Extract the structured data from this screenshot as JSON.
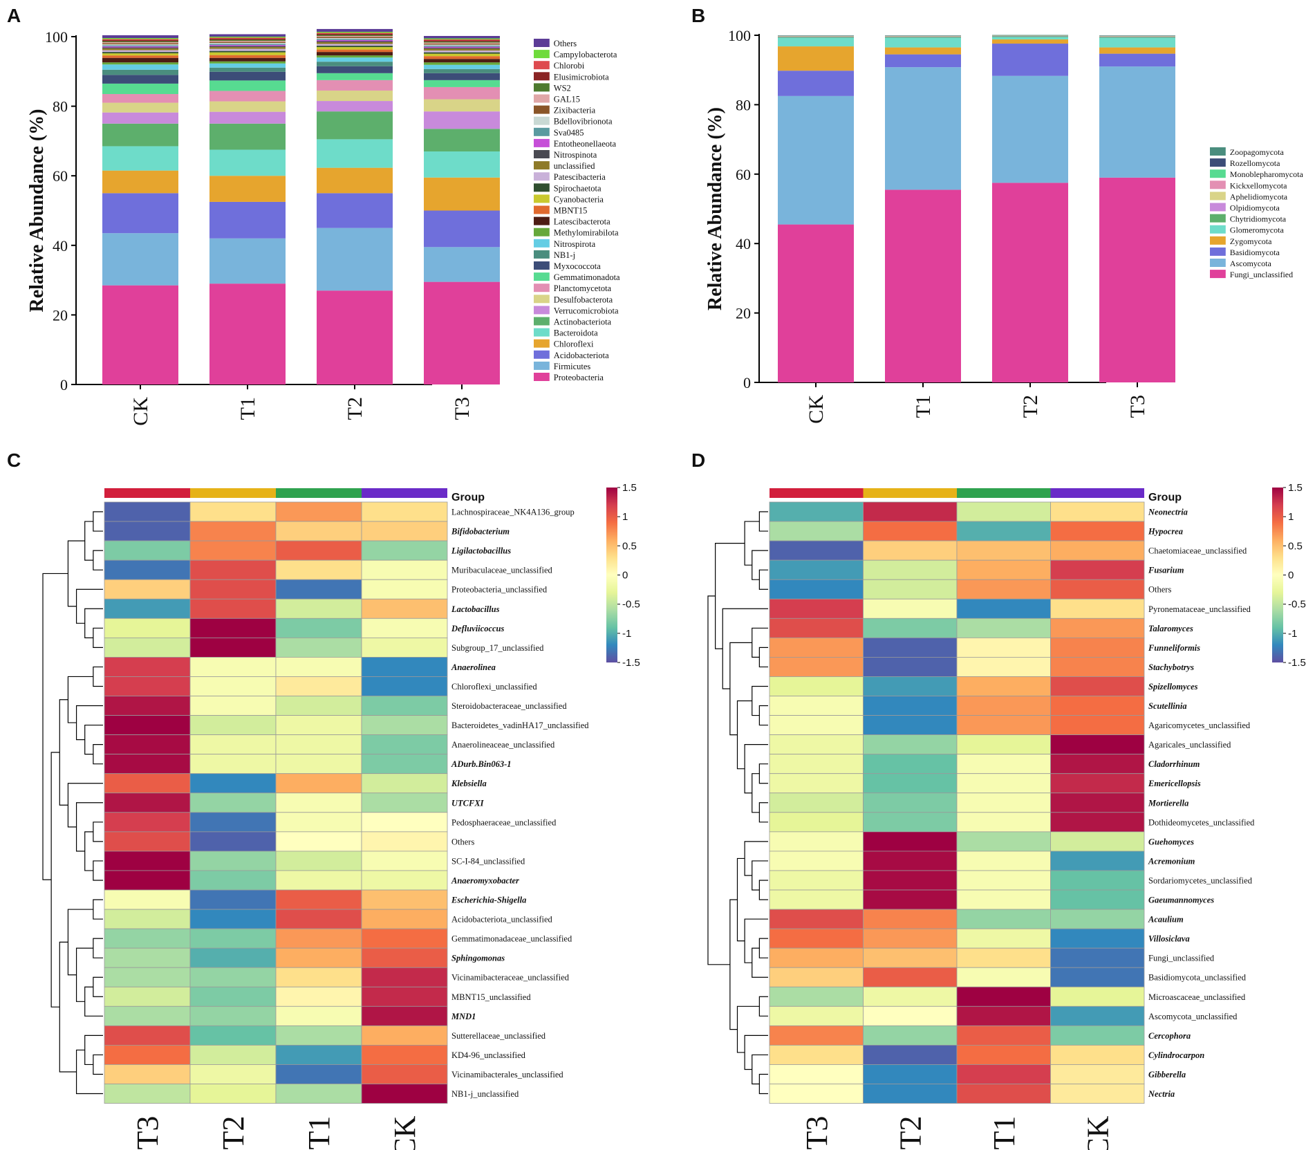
{
  "panels": {
    "A": "A",
    "B": "B",
    "C": "C",
    "D": "D"
  },
  "chart_data": [
    {
      "panel": "A",
      "type": "bar",
      "stacked": true,
      "ylabel": "Relative Abundance (%)",
      "ylim": [
        0,
        100
      ],
      "yticks": [
        0,
        20,
        40,
        60,
        80,
        100
      ],
      "categories": [
        "CK",
        "T1",
        "T2",
        "T3"
      ],
      "legend_order": [
        "Others",
        "Campylobacterota",
        "Chlorobi",
        "Elusimicrobiota",
        "WS2",
        "GAL15",
        "Zixibacteria",
        "Bdellovibrionota",
        "Sva0485",
        "Entotheonellaeota",
        "Nitrospinota",
        "unclassified",
        "Patescibacteria",
        "Spirochaetota",
        "Cyanobacteria",
        "MBNT15",
        "Latescibacterota",
        "Methylomirabilota",
        "Nitrospirota",
        "NB1-j",
        "Myxococcota",
        "Gemmatimonadota",
        "Planctomycetota",
        "Desulfobacterota",
        "Verrucomicrobiota",
        "Actinobacteriota",
        "Bacteroidota",
        "Chloroflexi",
        "Acidobacteriota",
        "Firmicutes",
        "Proteobacteria"
      ],
      "series": [
        {
          "name": "Proteobacteria",
          "color": "#e0409a",
          "values": [
            28.5,
            29,
            27,
            29.5
          ]
        },
        {
          "name": "Firmicutes",
          "color": "#79b4db",
          "values": [
            15,
            13,
            18,
            10
          ]
        },
        {
          "name": "Acidobacteriota",
          "color": "#6f6fdb",
          "values": [
            11.5,
            10.5,
            10,
            10.5
          ]
        },
        {
          "name": "Chloroflexi",
          "color": "#e6a52e",
          "values": [
            6.5,
            7.5,
            7.3,
            9.5
          ]
        },
        {
          "name": "Bacteroidota",
          "color": "#6edcc9",
          "values": [
            7,
            7.5,
            8.2,
            7.5
          ]
        },
        {
          "name": "Actinobacteriota",
          "color": "#5daf6c",
          "values": [
            6.5,
            7.5,
            8,
            6.5
          ]
        },
        {
          "name": "Verrucomicrobiota",
          "color": "#c88adb",
          "values": [
            3.2,
            3.4,
            3,
            5
          ]
        },
        {
          "name": "Desulfobacterota",
          "color": "#d9d488",
          "values": [
            2.8,
            3,
            3,
            3.5
          ]
        },
        {
          "name": "Planctomycetota",
          "color": "#e38fb3",
          "values": [
            2.5,
            3,
            3,
            3.5
          ]
        },
        {
          "name": "Gemmatimonadota",
          "color": "#57db91",
          "values": [
            3,
            3,
            2,
            2
          ]
        },
        {
          "name": "Myxococcota",
          "color": "#3c4d78",
          "values": [
            2.5,
            2.5,
            2,
            2
          ]
        },
        {
          "name": "NB1-j",
          "color": "#4a8d7e",
          "values": [
            1.5,
            1.2,
            1.3,
            1.2
          ]
        },
        {
          "name": "Nitrospirota",
          "color": "#64cde4",
          "values": [
            1.5,
            1.2,
            1.2,
            1.2
          ]
        },
        {
          "name": "Methylomirabilota",
          "color": "#66a83a",
          "values": [
            0.6,
            0.6,
            0.6,
            0.7
          ]
        },
        {
          "name": "Latescibacterota",
          "color": "#4d1c14",
          "values": [
            1.3,
            1,
            1,
            1
          ]
        },
        {
          "name": "MBNT15",
          "color": "#e0692e",
          "values": [
            0.7,
            0.8,
            0.7,
            0.8
          ]
        },
        {
          "name": "Cyanobacteria",
          "color": "#c9c92e",
          "values": [
            0.6,
            0.8,
            0.7,
            0.7
          ]
        },
        {
          "name": "Spirochaetota",
          "color": "#2f4f2f",
          "values": [
            0.4,
            0.4,
            0.4,
            0.4
          ]
        },
        {
          "name": "Patescibacteria",
          "color": "#c9b1d9",
          "values": [
            0.5,
            0.6,
            0.5,
            0.5
          ]
        },
        {
          "name": "unclassified",
          "color": "#8e7a28",
          "values": [
            0.5,
            0.5,
            0.5,
            0.5
          ]
        },
        {
          "name": "Nitrospinota",
          "color": "#4a4a52",
          "values": [
            0.3,
            0.3,
            0.3,
            0.3
          ]
        },
        {
          "name": "Entotheonellaeota",
          "color": "#c64fd8",
          "values": [
            0.3,
            0.3,
            0.3,
            0.3
          ]
        },
        {
          "name": "Sva0485",
          "color": "#5a9aa0",
          "values": [
            0.3,
            0.3,
            0.3,
            0.3
          ]
        },
        {
          "name": "Bdellovibrionota",
          "color": "#c9d9d4",
          "values": [
            0.3,
            0.3,
            0.3,
            0.3
          ]
        },
        {
          "name": "Zixibacteria",
          "color": "#8a5528",
          "values": [
            0.3,
            0.3,
            0.3,
            0.3
          ]
        },
        {
          "name": "GAL15",
          "color": "#e0a7a7",
          "values": [
            0.3,
            0.3,
            0.3,
            0.3
          ]
        },
        {
          "name": "WS2",
          "color": "#4d7a2e",
          "values": [
            0.3,
            0.3,
            0.3,
            0.3
          ]
        },
        {
          "name": "Elusimicrobiota",
          "color": "#8a2424",
          "values": [
            0.3,
            0.3,
            0.3,
            0.3
          ]
        },
        {
          "name": "Chlorobi",
          "color": "#de4a4f",
          "values": [
            0.3,
            0.3,
            0.3,
            0.3
          ]
        },
        {
          "name": "Campylobacterota",
          "color": "#6fdb3c",
          "values": [
            0.3,
            0.3,
            0.3,
            0.3
          ]
        },
        {
          "name": "Others",
          "color": "#5c3c96",
          "values": [
            0.8,
            0.7,
            0.8,
            0.7
          ]
        }
      ]
    },
    {
      "panel": "B",
      "type": "bar",
      "stacked": true,
      "ylabel": "Relative Abundance (%)",
      "ylim": [
        0,
        100
      ],
      "yticks": [
        0,
        20,
        40,
        60,
        80,
        100
      ],
      "categories": [
        "CK",
        "T1",
        "T2",
        "T3"
      ],
      "legend_order": [
        "Zoopagomycota",
        "Rozellomycota",
        "Monoblepharomycota",
        "Kickxellomycota",
        "Aphelidiomycota",
        "Olpidiomycota",
        "Chytridiomycota",
        "Glomeromycota",
        "Zygomycota",
        "Basidiomycota",
        "Ascomycota",
        "Fungi_unclassified"
      ],
      "series": [
        {
          "name": "Fungi_unclassified",
          "color": "#e0409a",
          "values": [
            45.5,
            55.5,
            57.5,
            59
          ]
        },
        {
          "name": "Ascomycota",
          "color": "#79b4db",
          "values": [
            37,
            35.3,
            30.8,
            32
          ]
        },
        {
          "name": "Basidiomycota",
          "color": "#6f6fdb",
          "values": [
            7.3,
            3.7,
            9.3,
            3.7
          ]
        },
        {
          "name": "Zygomycota",
          "color": "#e6a52e",
          "values": [
            7,
            2,
            1.2,
            1.8
          ]
        },
        {
          "name": "Glomeromycota",
          "color": "#6edcc9",
          "values": [
            2.5,
            2.8,
            0.7,
            2.8
          ]
        },
        {
          "name": "Chytridiomycota",
          "color": "#5daf6c",
          "values": [
            0.2,
            0.2,
            0.2,
            0.2
          ]
        },
        {
          "name": "Olpidiomycota",
          "color": "#c88adb",
          "values": [
            0.1,
            0.1,
            0.1,
            0.1
          ]
        },
        {
          "name": "Aphelidiomycota",
          "color": "#d9d488",
          "values": [
            0.1,
            0.1,
            0.1,
            0.1
          ]
        },
        {
          "name": "Kickxellomycota",
          "color": "#e38fb3",
          "values": [
            0.1,
            0.1,
            0.05,
            0.1
          ]
        },
        {
          "name": "Monoblepharomycota",
          "color": "#57db91",
          "values": [
            0.05,
            0.05,
            0.05,
            0.05
          ]
        },
        {
          "name": "Rozellomycota",
          "color": "#3c4d78",
          "values": [
            0.05,
            0.05,
            0.05,
            0.05
          ]
        },
        {
          "name": "Zoopagomycota",
          "color": "#4a8d7e",
          "values": [
            0.05,
            0.05,
            0.05,
            0.05
          ]
        }
      ]
    },
    {
      "panel": "C",
      "type": "heatmap",
      "group_label": "Group",
      "groups": [
        "T3",
        "T2",
        "T1",
        "CK"
      ],
      "group_colors": [
        "#d21f3c",
        "#e6b218",
        "#2fa24f",
        "#6a2bc8"
      ],
      "colorbar": {
        "min": -1.5,
        "max": 1.5,
        "ticks": [
          "1.5",
          "1",
          "0.5",
          "0",
          "-0.5",
          "-1",
          "-1.5"
        ]
      },
      "rows": [
        "Lachnospiraceae_NK4A136_group",
        "Bifidobacterium",
        "Ligilactobacillus",
        "Muribaculaceae_unclassified",
        "Proteobacteria_unclassified",
        "Lactobacillus",
        "Defluviicoccus",
        "Subgroup_17_unclassified",
        "Anaerolinea",
        "Chloroflexi_unclassified",
        "Steroidobacteraceae_unclassified",
        "Bacteroidetes_vadinHA17_unclassified",
        "Anaerolineaceae_unclassified",
        "ADurb.Bin063-1",
        "Klebsiella",
        "UTCFXI",
        "Pedosphaeraceae_unclassified",
        "Others",
        "SC-I-84_unclassified",
        "Anaeromyxobacter",
        "Escherichia-Shigella",
        "Acidobacteriota_unclassified",
        "Gemmatimonadaceae_unclassified",
        "Sphingomonas",
        "Vicinamibacteraceae_unclassified",
        "MBNT15_unclassified",
        "MND1",
        "Sutterellaceae_unclassified",
        "KD4-96_unclassified",
        "Vicinamibacterales_unclassified",
        "NB1-j_unclassified"
      ],
      "italic": [
        false,
        true,
        true,
        false,
        false,
        true,
        true,
        false,
        true,
        false,
        false,
        false,
        false,
        true,
        true,
        true,
        false,
        false,
        false,
        true,
        true,
        false,
        false,
        true,
        false,
        false,
        true,
        false,
        false,
        false,
        false
      ],
      "values": [
        [
          -1.4,
          0.3,
          0.7,
          0.3
        ],
        [
          -1.4,
          0.8,
          0.4,
          0.4
        ],
        [
          -0.8,
          0.8,
          1.0,
          -0.7
        ],
        [
          -1.3,
          1.1,
          0.3,
          -0.1
        ],
        [
          0.4,
          1.1,
          -1.3,
          -0.1
        ],
        [
          -1.1,
          1.1,
          -0.4,
          0.5
        ],
        [
          -0.3,
          1.5,
          -0.8,
          -0.1
        ],
        [
          -0.4,
          1.5,
          -0.6,
          -0.2
        ],
        [
          1.2,
          -0.1,
          -0.1,
          -1.2
        ],
        [
          1.2,
          -0.1,
          0.2,
          -1.2
        ],
        [
          1.4,
          -0.1,
          -0.4,
          -0.8
        ],
        [
          1.5,
          -0.4,
          -0.2,
          -0.6
        ],
        [
          1.45,
          -0.2,
          -0.2,
          -0.8
        ],
        [
          1.45,
          -0.2,
          -0.2,
          -0.8
        ],
        [
          1.0,
          -1.2,
          0.6,
          -0.4
        ],
        [
          1.4,
          -0.7,
          -0.1,
          -0.6
        ],
        [
          1.2,
          -1.3,
          -0.1,
          0.0
        ],
        [
          1.1,
          -1.4,
          0.0,
          0.1
        ],
        [
          1.5,
          -0.7,
          -0.4,
          -0.1
        ],
        [
          1.5,
          -0.8,
          -0.2,
          -0.2
        ],
        [
          -0.1,
          -1.3,
          1.0,
          0.5
        ],
        [
          -0.4,
          -1.2,
          1.1,
          0.6
        ],
        [
          -0.7,
          -0.8,
          0.7,
          0.9
        ],
        [
          -0.6,
          -1.0,
          0.6,
          1.0
        ],
        [
          -0.6,
          -0.7,
          0.3,
          1.3
        ],
        [
          -0.4,
          -0.8,
          0.1,
          1.3
        ],
        [
          -0.6,
          -0.7,
          -0.1,
          1.4
        ],
        [
          1.1,
          -0.9,
          -0.6,
          0.6
        ],
        [
          0.9,
          -0.4,
          -1.1,
          0.9
        ],
        [
          0.4,
          -0.2,
          -1.3,
          1.0
        ],
        [
          -0.5,
          -0.3,
          -0.6,
          1.5
        ]
      ]
    },
    {
      "panel": "D",
      "type": "heatmap",
      "group_label": "Group",
      "groups": [
        "T3",
        "T2",
        "T1",
        "CK"
      ],
      "group_colors": [
        "#d21f3c",
        "#e6b218",
        "#2fa24f",
        "#6a2bc8"
      ],
      "colorbar": {
        "min": -1.5,
        "max": 1.5,
        "ticks": [
          "1.5",
          "1",
          "0.5",
          "0",
          "-0.5",
          "-1",
          "-1.5"
        ]
      },
      "rows": [
        "Neonectria",
        "Hypocrea",
        "Chaetomiaceae_unclassified",
        "Fusarium",
        "Others",
        "Pyronemataceae_unclassified",
        "Talaromyces",
        "Funneliformis",
        "Stachybotrys",
        "Spizellomyces",
        "Scutellinia",
        "Agaricomycetes_unclassified",
        "Agaricales_unclassified",
        "Cladorrhinum",
        "Emericellopsis",
        "Mortierella",
        "Dothideomycetes_unclassified",
        "Guehomyces",
        "Acremonium",
        "Sordariomycetes_unclassified",
        "Gaeumannomyces",
        "Acaulium",
        "Villosiclava",
        "Fungi_unclassified",
        "Basidiomycota_unclassified",
        "Microascaceae_unclassified",
        "Ascomycota_unclassified",
        "Cercophora",
        "Cylindrocarpon",
        "Gibberella",
        "Nectria"
      ],
      "italic": [
        true,
        true,
        false,
        true,
        false,
        false,
        true,
        true,
        true,
        true,
        true,
        false,
        false,
        true,
        true,
        true,
        false,
        true,
        true,
        false,
        true,
        true,
        true,
        false,
        false,
        false,
        false,
        true,
        true,
        true,
        true
      ],
      "values": [
        [
          -1.0,
          1.3,
          -0.4,
          0.3
        ],
        [
          -0.6,
          0.9,
          -1.0,
          0.9
        ],
        [
          -1.4,
          0.4,
          0.5,
          0.6
        ],
        [
          -1.1,
          -0.4,
          0.6,
          1.2
        ],
        [
          -1.2,
          -0.4,
          0.7,
          1.0
        ],
        [
          1.2,
          -0.1,
          -1.2,
          0.3
        ],
        [
          1.1,
          -0.8,
          -0.6,
          0.7
        ],
        [
          0.7,
          -1.4,
          0.1,
          0.8
        ],
        [
          0.7,
          -1.4,
          0.1,
          0.8
        ],
        [
          -0.3,
          -1.1,
          0.6,
          1.1
        ],
        [
          -0.1,
          -1.2,
          0.7,
          0.9
        ],
        [
          -0.1,
          -1.2,
          0.7,
          0.9
        ],
        [
          -0.2,
          -0.7,
          -0.3,
          1.5
        ],
        [
          -0.2,
          -0.9,
          -0.1,
          1.4
        ],
        [
          -0.2,
          -0.9,
          -0.1,
          1.3
        ],
        [
          -0.4,
          -0.8,
          -0.1,
          1.4
        ],
        [
          -0.3,
          -0.8,
          -0.1,
          1.4
        ],
        [
          -0.1,
          1.5,
          -0.6,
          -0.4
        ],
        [
          -0.1,
          1.45,
          -0.1,
          -1.1
        ],
        [
          -0.2,
          1.45,
          -0.1,
          -0.9
        ],
        [
          -0.2,
          1.45,
          -0.1,
          -0.9
        ],
        [
          1.1,
          0.8,
          -0.7,
          -0.7
        ],
        [
          0.9,
          0.7,
          -0.2,
          -1.2
        ],
        [
          0.6,
          0.5,
          0.3,
          -1.3
        ],
        [
          0.4,
          1.0,
          -0.1,
          -1.3
        ],
        [
          -0.6,
          -0.2,
          1.5,
          -0.3
        ],
        [
          -0.2,
          0.0,
          1.4,
          -1.1
        ],
        [
          0.8,
          -0.7,
          1.0,
          -0.8
        ],
        [
          0.3,
          -1.4,
          0.9,
          0.3
        ],
        [
          0.0,
          -1.2,
          1.2,
          0.2
        ],
        [
          0.0,
          -1.2,
          1.1,
          0.2
        ]
      ]
    }
  ]
}
